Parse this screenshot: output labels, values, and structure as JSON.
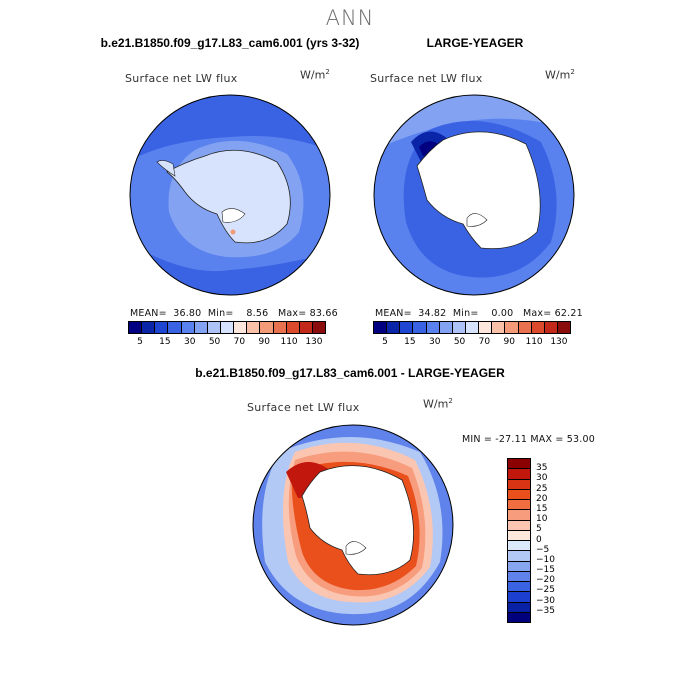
{
  "main_title": "ANN",
  "top_left": {
    "case_title": "b.e21.B1850.f09_g17.L83_cam6.001 (yrs 3-32)",
    "variable": "Surface net LW flux",
    "units_base": "W/m",
    "units_sup": "2",
    "stats": {
      "mean_label": "MEAN=",
      "mean": "36.80",
      "min_label": "Min=",
      "min": "8.56",
      "max_label": "Max=",
      "max": "83.66"
    }
  },
  "top_right": {
    "case_title": "LARGE-YEAGER",
    "variable": "Surface net LW flux",
    "units_base": "W/m",
    "units_sup": "2",
    "stats": {
      "mean_label": "MEAN=",
      "mean": "34.82",
      "min_label": "Min=",
      "min": "0.00",
      "max_label": "Max=",
      "max": "62.21"
    }
  },
  "bottom": {
    "case_title": "b.e21.B1850.f09_g17.L83_cam6.001 - LARGE-YEAGER",
    "variable": "Surface net LW flux",
    "units_base": "W/m",
    "units_sup": "2",
    "stats_text": "MIN = -27.11 MAX =  53.00"
  },
  "abs_colorbar": {
    "tick_labels": [
      "5",
      "15",
      "30",
      "50",
      "70",
      "90",
      "110",
      "130"
    ],
    "colors": [
      "#000080",
      "#0b25a8",
      "#1f46d2",
      "#3a63e4",
      "#5a82ee",
      "#83a3f2",
      "#adc3f7",
      "#d7e3fc",
      "#fde6dc",
      "#f9c1a7",
      "#f39a78",
      "#e8724f",
      "#dc4a2e",
      "#c3291b",
      "#8b0c0c"
    ]
  },
  "diff_colorbar": {
    "tick_labels": [
      "35",
      "30",
      "25",
      "20",
      "15",
      "10",
      "5",
      "0",
      "−5",
      "−10",
      "−15",
      "−20",
      "−25",
      "−30",
      "−35"
    ],
    "colors": [
      "#8b0000",
      "#c1170c",
      "#d93414",
      "#e9501c",
      "#f26d3f",
      "#f79c7d",
      "#fbc6b1",
      "#fde8dc",
      "#dce8fb",
      "#b2c8f5",
      "#88a6f0",
      "#5f82eb",
      "#3a63e4",
      "#1c3fcf",
      "#0922a5",
      "#00007c"
    ]
  },
  "chart_data": [
    {
      "type": "map",
      "title": "b.e21.B1850.f09_g17.L83_cam6.001 (yrs 3-32)",
      "variable": "Surface net LW flux",
      "units": "W/m2",
      "projection": "south polar stereographic",
      "levels": [
        5,
        10,
        15,
        20,
        30,
        40,
        50,
        60,
        70,
        80,
        90,
        100,
        110,
        120,
        130
      ],
      "mean": 36.8,
      "min": 8.56,
      "max": 83.66
    },
    {
      "type": "map",
      "title": "LARGE-YEAGER",
      "variable": "Surface net LW flux",
      "units": "W/m2",
      "projection": "south polar stereographic",
      "levels": [
        5,
        10,
        15,
        20,
        30,
        40,
        50,
        60,
        70,
        80,
        90,
        100,
        110,
        120,
        130
      ],
      "mean": 34.82,
      "min": 0.0,
      "max": 62.21
    },
    {
      "type": "map",
      "title": "b.e21.B1850.f09_g17.L83_cam6.001 - LARGE-YEAGER",
      "variable": "Surface net LW flux",
      "units": "W/m2",
      "projection": "south polar stereographic",
      "levels": [
        -35,
        -30,
        -25,
        -20,
        -15,
        -10,
        -5,
        0,
        5,
        10,
        15,
        20,
        25,
        30,
        35
      ],
      "min": -27.11,
      "max": 53.0
    }
  ]
}
